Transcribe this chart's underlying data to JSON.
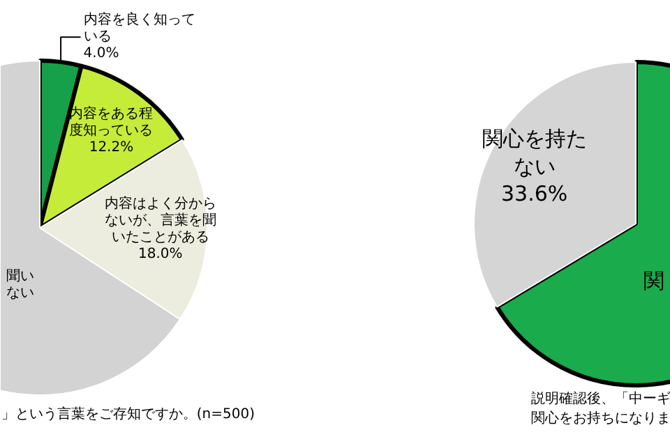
{
  "chart_data": [
    {
      "type": "pie",
      "categories": [
        "内容を良く知っている",
        "内容をある程度知っている",
        "内容はよく分からないが、言葉を聞いたことがある",
        "聞いない"
      ],
      "values": [
        4.0,
        12.2,
        18.0,
        65.8
      ],
      "value_labels": [
        "4.0%",
        "12.2%",
        "18.0%",
        null
      ],
      "colors": [
        "#16a04a",
        "#c6ec3a",
        "#ececdf",
        "#d3d3d3"
      ],
      "annotations": [
        "」という言葉をご存知ですか。(n=500)"
      ]
    },
    {
      "type": "pie",
      "categories": [
        "関",
        "関心を持たない"
      ],
      "values": [
        66.4,
        33.6
      ],
      "value_labels": [
        null,
        "33.6%"
      ],
      "colors": [
        "#1aab4c",
        "#d5d5d5"
      ],
      "annotations": [
        "説明確認後、「中ーギ関心をお持ちになりま"
      ]
    }
  ]
}
